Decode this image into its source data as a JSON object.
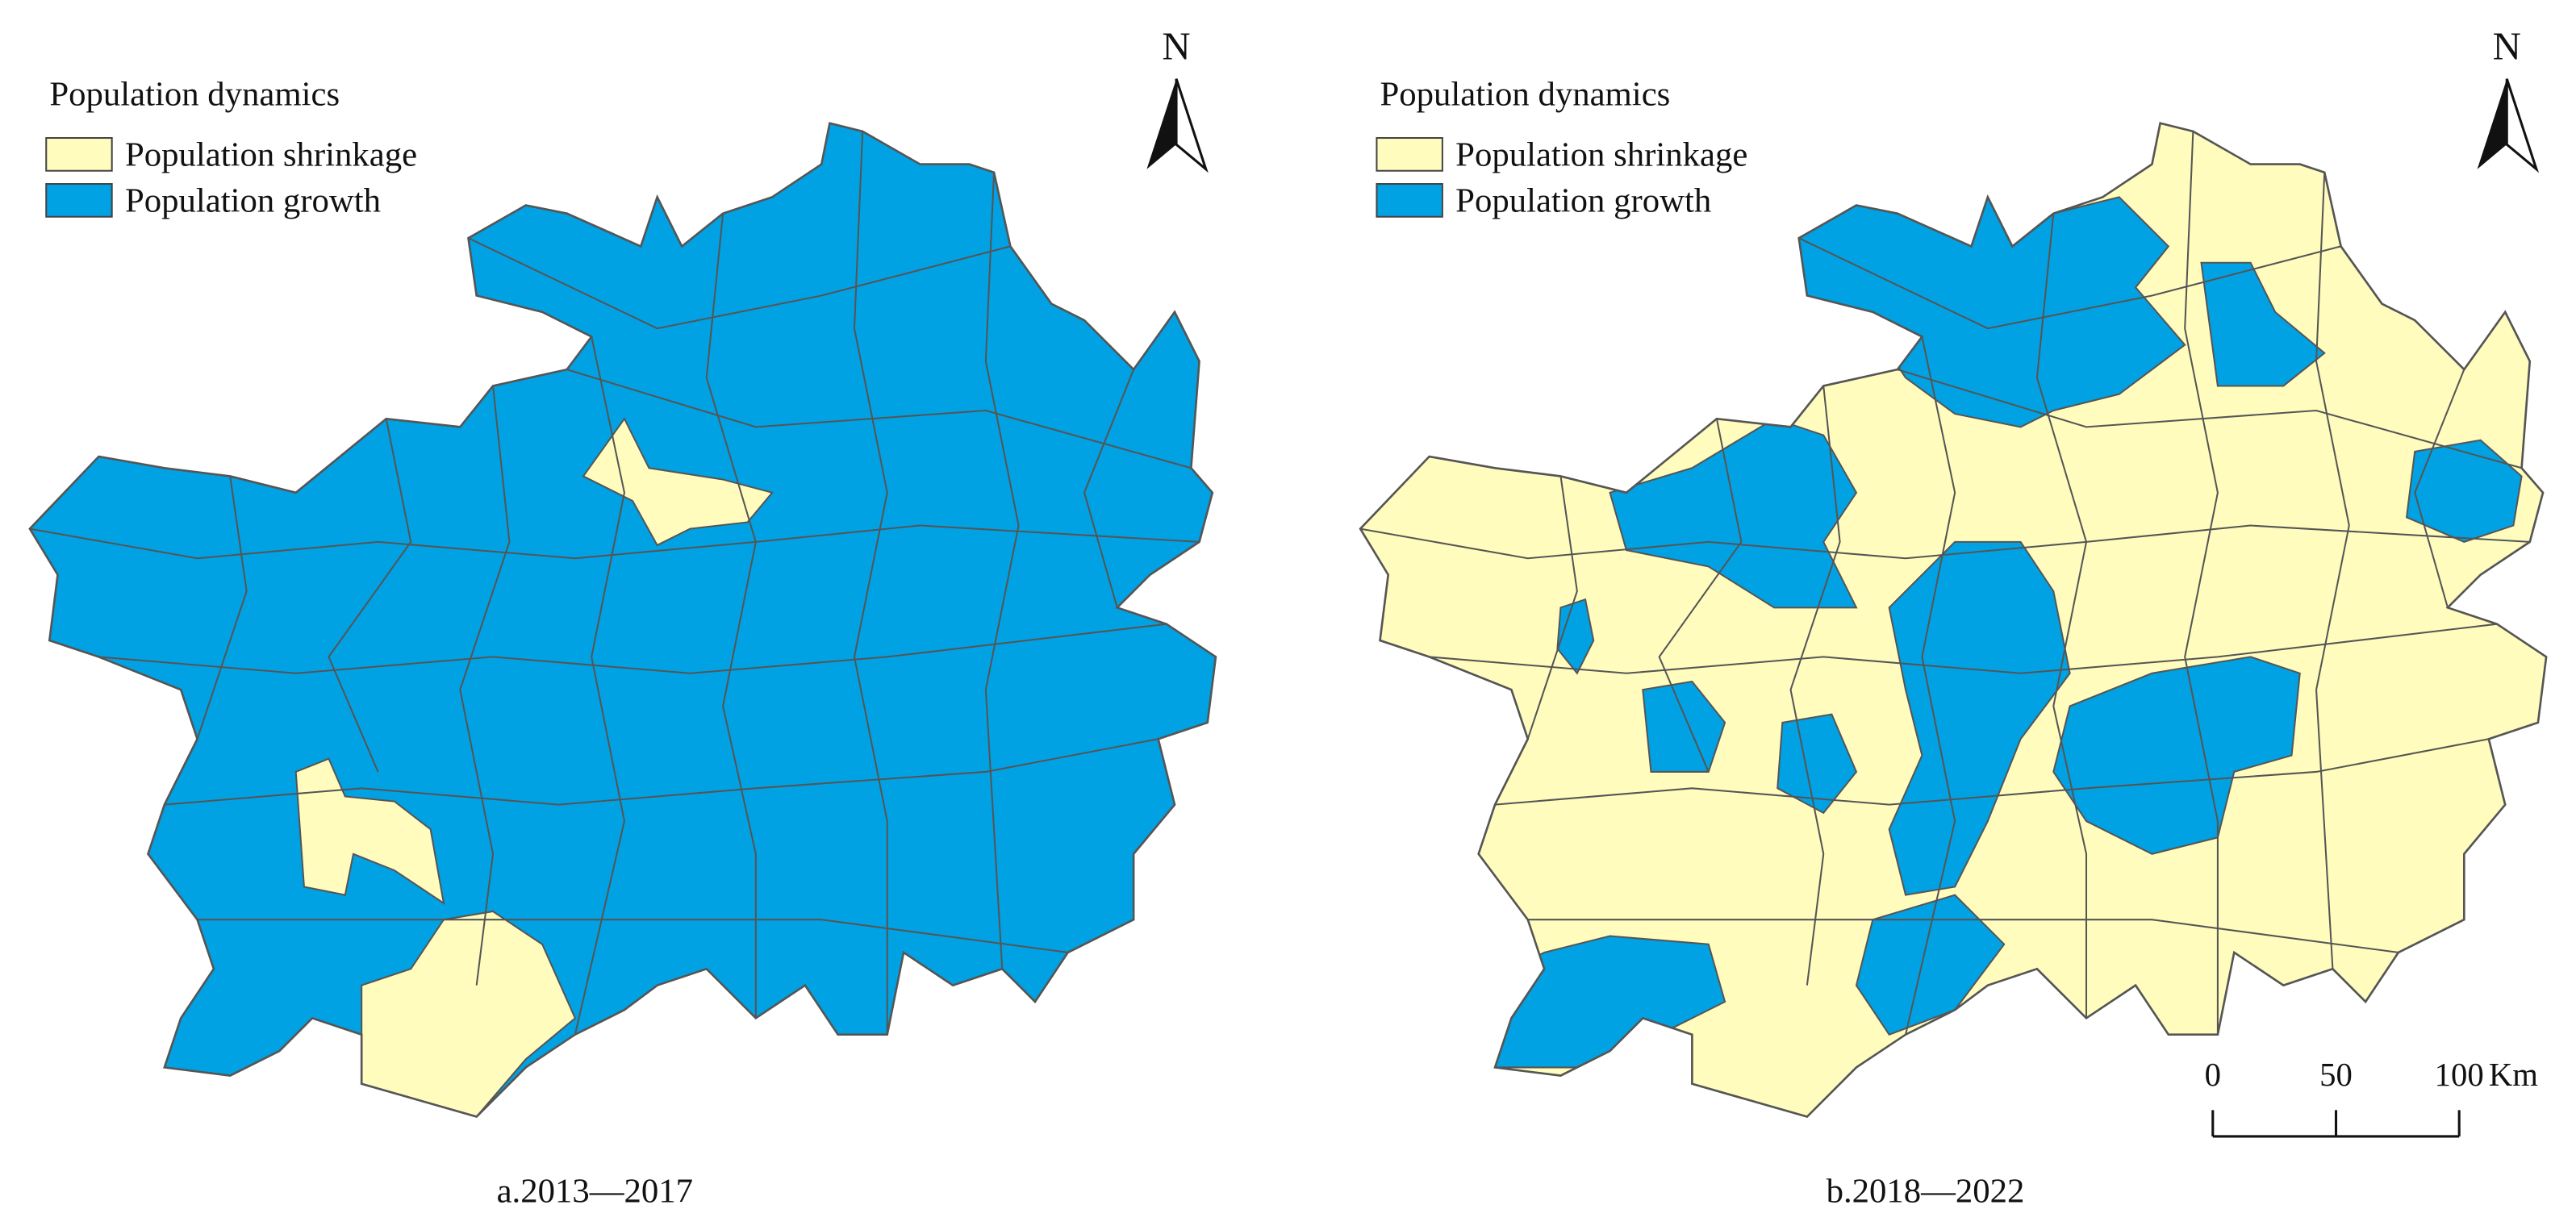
{
  "panels": [
    {
      "legend": {
        "title": "Population dynamics",
        "items": [
          {
            "label": "Population shrinkage",
            "color": "#fffcbe"
          },
          {
            "label": "Population growth",
            "color": "#00a2e4"
          }
        ]
      },
      "north": "N",
      "caption": "a.2013—2017"
    },
    {
      "legend": {
        "title": "Population dynamics",
        "items": [
          {
            "label": "Population shrinkage",
            "color": "#fffcbe"
          },
          {
            "label": "Population growth",
            "color": "#00a2e4"
          }
        ]
      },
      "north": "N",
      "caption": "b.2018—2022"
    }
  ],
  "scale_bar": {
    "ticks": [
      0,
      50,
      100
    ],
    "unit": "Km"
  }
}
